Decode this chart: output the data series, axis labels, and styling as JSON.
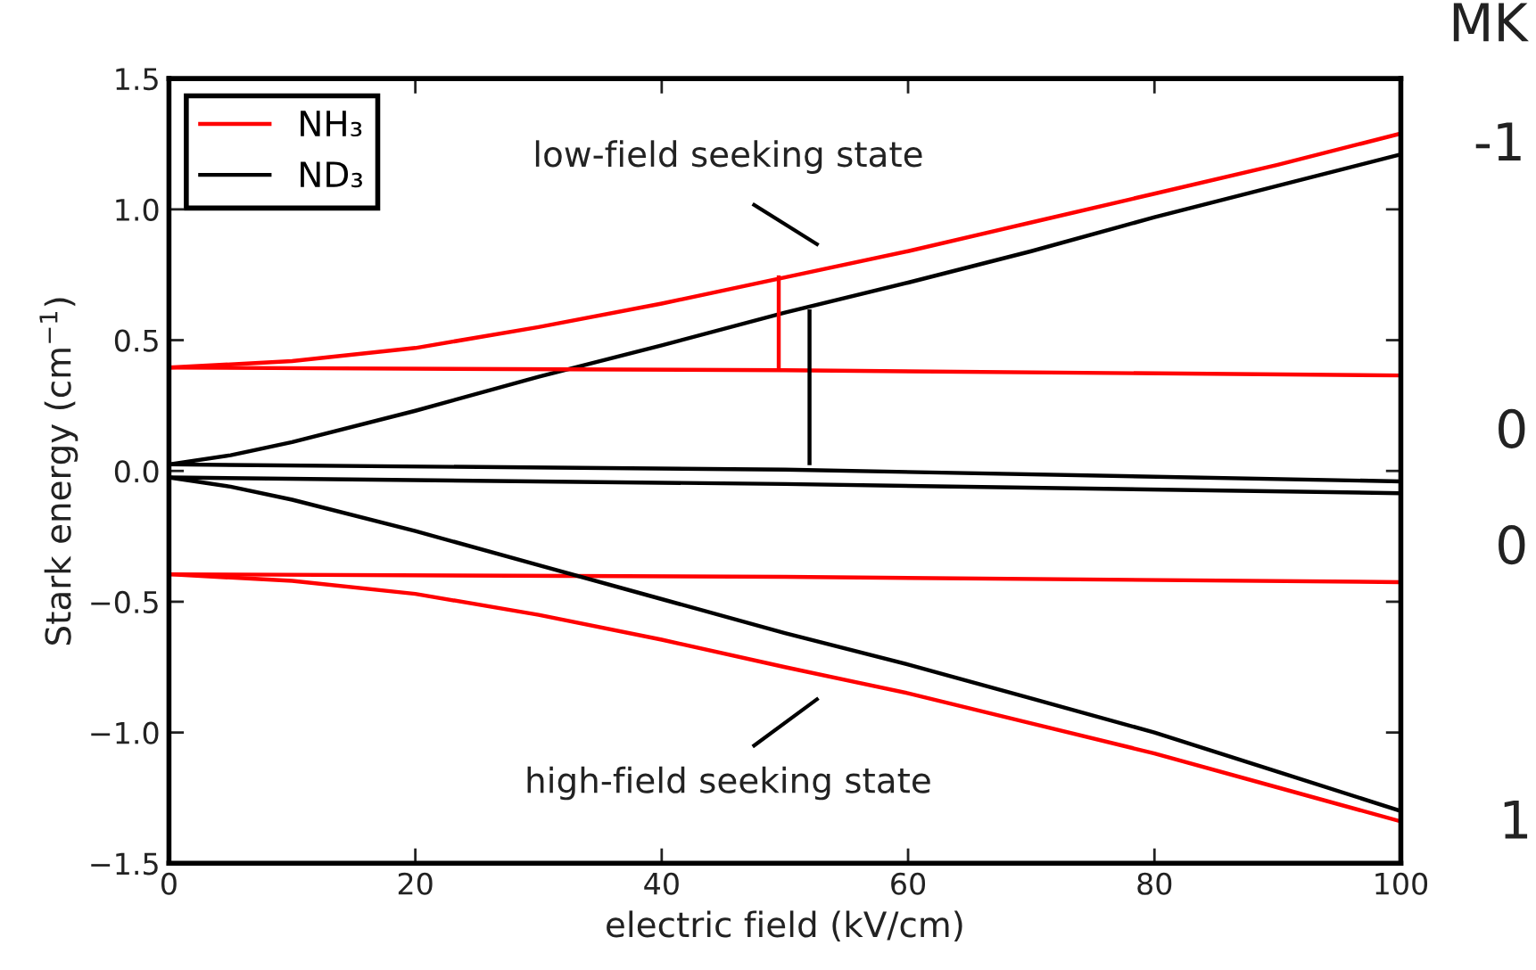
{
  "chart_data": {
    "type": "line",
    "xlabel": "electric field (kV/cm)",
    "ylabel": "Stark energy (cm$^{−1}$)",
    "xlim": [
      0,
      100
    ],
    "ylim": [
      -1.5,
      1.5
    ],
    "xticks": [
      0,
      20,
      40,
      60,
      80,
      100
    ],
    "yticks": [
      {
        "value": -1.5,
        "label": "−1.5"
      },
      {
        "value": -1.0,
        "label": "−1.0"
      },
      {
        "value": -0.5,
        "label": "−0.5"
      },
      {
        "value": 0,
        "label": "0.0"
      },
      0.5,
      {
        "value": 1,
        "label": "1.0"
      },
      1.5
    ],
    "legend": "top left",
    "grid": false,
    "marker": "none",
    "line_style": "solid",
    "series": [
      {
        "name": "NH₃",
        "color": "#ff0000",
        "x": [
          0,
          10,
          20,
          30,
          40,
          50,
          60,
          70,
          80,
          90,
          100
        ],
        "values": [
          0.395,
          0.42,
          0.47,
          0.55,
          0.64,
          0.74,
          0.84,
          0.95,
          1.06,
          1.17,
          1.29
        ]
      },
      {
        "name": "ND₃",
        "color": "#000000",
        "x": [
          0,
          5,
          10,
          20,
          30,
          40,
          50,
          60,
          70,
          80,
          90,
          100
        ],
        "values": [
          0.025,
          0.06,
          0.11,
          0.23,
          0.36,
          0.48,
          0.605,
          0.72,
          0.84,
          0.97,
          1.09,
          1.21
        ]
      },
      {
        "color": "#ff0000",
        "x": [
          0,
          50,
          100
        ],
        "values": [
          0.395,
          0.385,
          0.365
        ]
      },
      {
        "color": "#ff0000",
        "x": [
          0,
          50,
          100
        ],
        "values": [
          -0.395,
          -0.405,
          -0.425
        ]
      },
      {
        "color": "#ff0000",
        "x": [
          0,
          10,
          20,
          30,
          40,
          50,
          60,
          70,
          80,
          90,
          100
        ],
        "values": [
          -0.395,
          -0.42,
          -0.47,
          -0.55,
          -0.645,
          -0.75,
          -0.85,
          -0.965,
          -1.08,
          -1.21,
          -1.34
        ]
      },
      {
        "color": "#000000",
        "x": [
          0,
          50,
          100
        ],
        "values": [
          0.025,
          0.005,
          -0.04
        ]
      },
      {
        "color": "#000000",
        "x": [
          0,
          50,
          100
        ],
        "values": [
          -0.025,
          -0.05,
          -0.085
        ]
      },
      {
        "color": "#000000",
        "x": [
          0,
          5,
          10,
          20,
          30,
          40,
          50,
          60,
          70,
          80,
          90,
          100
        ],
        "values": [
          -0.025,
          -0.06,
          -0.11,
          -0.23,
          -0.36,
          -0.49,
          -0.62,
          -0.74,
          -0.87,
          -1.0,
          -1.15,
          -1.3
        ]
      },
      {
        "color": "#ff0000",
        "x": [
          49.5,
          49.5
        ],
        "values": [
          0.39,
          0.74
        ]
      },
      {
        "color": "#000000",
        "x": [
          52,
          52
        ],
        "values": [
          0.03,
          0.61
        ]
      }
    ],
    "annotations": [
      "low-field seeking state",
      "high-field seeking state",
      "MK",
      "-1",
      "0",
      "0",
      "1"
    ]
  }
}
